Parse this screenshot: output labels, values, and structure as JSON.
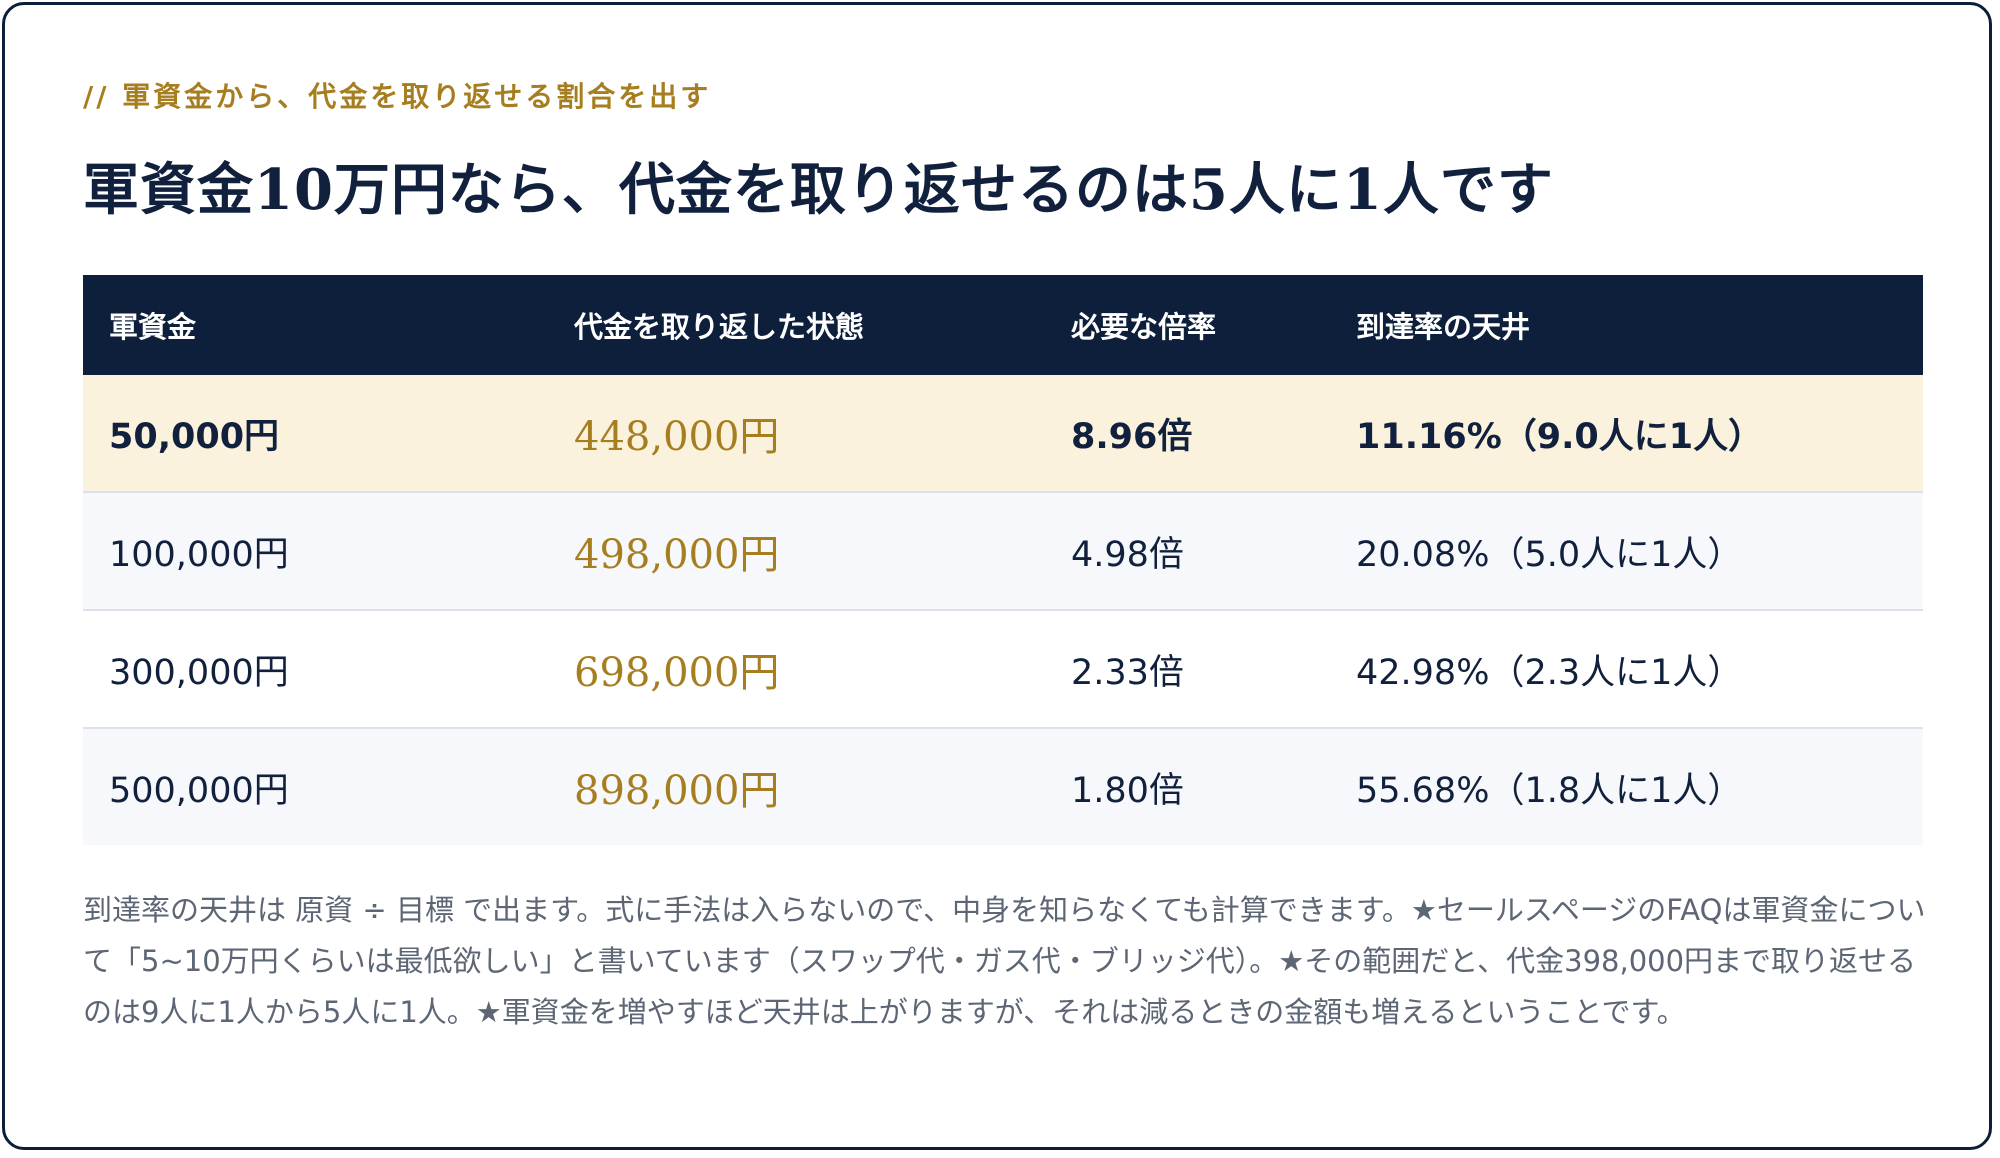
{
  "eyebrow": "// 軍資金から、代金を取り返せる割合を出す",
  "title": "軍資金10万円なら、代金を取り返せるのは5人に1人です",
  "table": {
    "headers": [
      "軍資金",
      "代金を取り返した状態",
      "必要な倍率",
      "到達率の天井"
    ],
    "rows": [
      {
        "capital": "50,000円",
        "target": "448,000円",
        "multiple": "8.96倍",
        "ceiling": "11.16%（9.0人に1人）"
      },
      {
        "capital": "100,000円",
        "target": "498,000円",
        "multiple": "4.98倍",
        "ceiling": "20.08%（5.0人に1人）"
      },
      {
        "capital": "300,000円",
        "target": "698,000円",
        "multiple": "2.33倍",
        "ceiling": "42.98%（2.3人に1人）"
      },
      {
        "capital": "500,000円",
        "target": "898,000円",
        "multiple": "1.80倍",
        "ceiling": "55.68%（1.8人に1人）"
      }
    ]
  },
  "note": "到達率の天井は 原資 ÷ 目標 で出ます。式に手法は入らないので、中身を知らなくても計算できます。★セールスページのFAQは軍資金について「5~10万円くらいは最低欲しい」と書いています（スワップ代・ガス代・ブリッジ代）。★その範囲だと、代金398,000円まで取り返せるのは9人に1人から5人に1人。★軍資金を増やすほど天井は上がりますが、それは減るときの金額も増えるということです。",
  "colors": {
    "navy": "#0d1f3b",
    "gold": "#a77e1f",
    "highlight_row": "#fbf2de",
    "alt_row": "#f6f8fb"
  }
}
